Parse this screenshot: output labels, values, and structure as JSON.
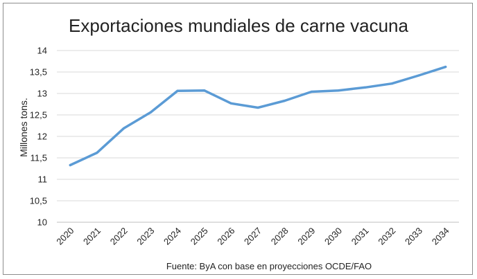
{
  "chart_data": {
    "type": "line",
    "title": "Exportaciones mundiales de carne vacuna",
    "ylabel": "Millones tons.",
    "xlabel": "",
    "source": "Fuente: ByA con base en proyecciones OCDE/FAO",
    "ylim": [
      10,
      14
    ],
    "yticks": [
      "10",
      "10,5",
      "11",
      "11,5",
      "12",
      "12,5",
      "13",
      "13,5",
      "14"
    ],
    "ytick_values": [
      10,
      10.5,
      11,
      11.5,
      12,
      12.5,
      13,
      13.5,
      14
    ],
    "grid": true,
    "legend": "none",
    "x": [
      "2020",
      "2021",
      "2022",
      "2023",
      "2024",
      "2025",
      "2026",
      "2027",
      "2028",
      "2029",
      "2030",
      "2031",
      "2032",
      "2033",
      "2034"
    ],
    "series": [
      {
        "values": [
          11.33,
          11.62,
          12.19,
          12.56,
          13.06,
          13.07,
          12.77,
          12.67,
          12.83,
          13.04,
          13.07,
          13.14,
          13.23,
          13.42,
          13.62
        ],
        "color": "#5b9bd5"
      }
    ]
  }
}
